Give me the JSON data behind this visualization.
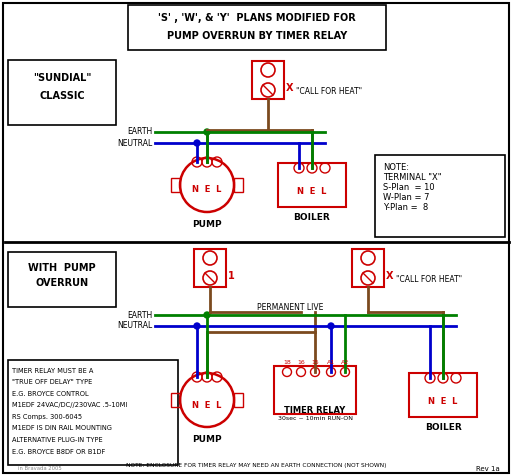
{
  "title_line1": "'S' , 'W', & 'Y'  PLANS MODIFIED FOR",
  "title_line2": "PUMP OVERRUN BY TIMER RELAY",
  "bg_color": "#ffffff",
  "border_color": "#000000",
  "red": "#cc0000",
  "green": "#008000",
  "blue": "#0000cc",
  "brown": "#7B4A1E",
  "section1_label": "\"SUNDIAL\"\n  CLASSIC",
  "section2_label": "WITH  PUMP\n OVERRUN",
  "note_text": "NOTE:\nTERMINAL \"X\"\nS-Plan  = 10\nW-Plan = 7\nY-Plan =  8",
  "timer_note": "TIMER RELAY MUST BE A\n\"TRUE OFF DELAY\" TYPE\nE.G. BROYCE CONTROL\nM1EDF 24VAC/DC//230VAC .5-10MI\nRS Comps. 300-6045\nM1EDF IS DIN RAIL MOUNTING\nALTERNATIVE PLUG-IN TYPE\nE.G. BROYCE B8DF OR B1DF",
  "bottom_note": "NOTE: ENCLOSURE FOR TIMER RELAY MAY NEED AN EARTH CONNECTION (NOT SHOWN)",
  "relay_timing": "30sec ~ 10min RUN-ON",
  "perm_live": "PERMANENT LIVE",
  "call_heat1": "\"CALL FOR HEAT\"",
  "call_heat2": "\"CALL FOR HEAT\"",
  "earth_label": "EARTH",
  "neutral_label": "NEUTRAL",
  "pump_label": "PUMP",
  "boiler_label": "BOILER",
  "timer_label": "TIMER RELAY",
  "watermark": "Rev 1a",
  "credit": "in Bravada 2005"
}
